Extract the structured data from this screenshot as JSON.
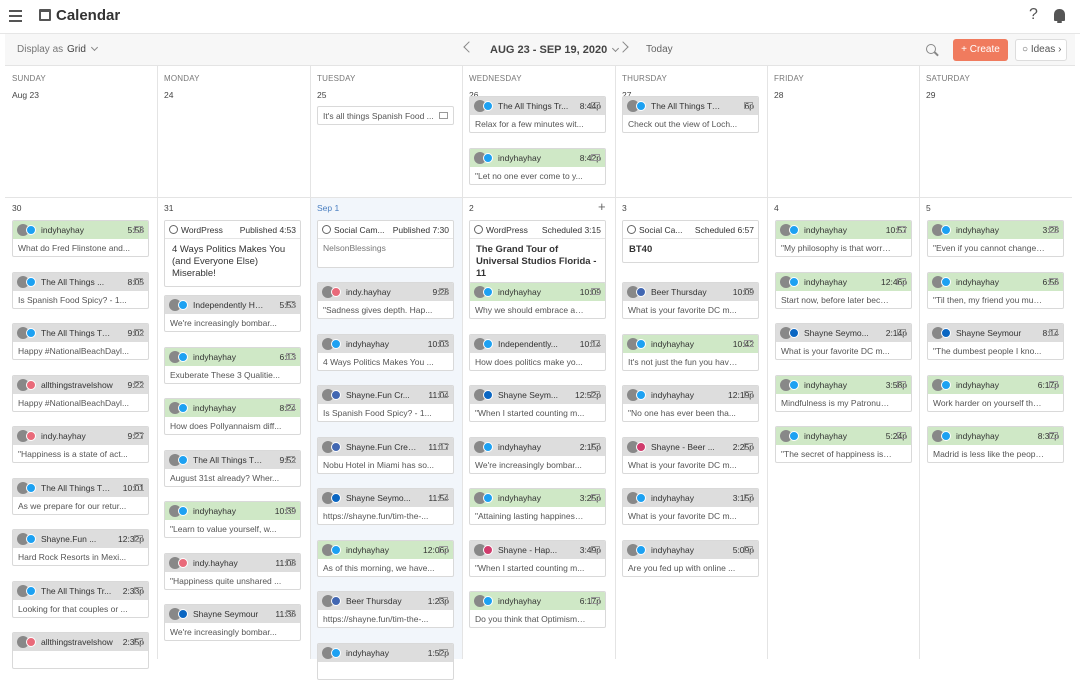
{
  "app": {
    "title": "Calendar"
  },
  "toolbar": {
    "display_as": "Display as",
    "view": "Grid",
    "range": "AUG 23 - SEP 19, 2020",
    "today": "Today",
    "create": "+ Create",
    "ideas": "Ideas"
  },
  "days": [
    "SUNDAY",
    "MONDAY",
    "TUESDAY",
    "WEDNESDAY",
    "THURSDAY",
    "FRIDAY",
    "SATURDAY"
  ],
  "week1_nums": [
    "Aug 23",
    "24",
    "25",
    "26",
    "27",
    "28",
    "29"
  ],
  "week2_nums": [
    "30",
    "31",
    "Sep 1",
    "2",
    "3",
    "4",
    "5"
  ],
  "wk1_tue": {
    "body": "It's all things Spanish Food ..."
  },
  "wk1_wed1": {
    "name": "The All Things Tr...",
    "time": "8:44p",
    "body": "Relax for a few minutes wit..."
  },
  "wk1_wed2": {
    "name": "indyhayhay",
    "time": "8:42p",
    "body": "\"Let no one ever come to y..."
  },
  "wk1_thu": {
    "name": "The All Things Travel...",
    "time": "6p",
    "body": "Check out the view of Loch..."
  },
  "sun": [
    {
      "name": "indyhayhay",
      "time": "5:58",
      "body": "What do Fred Flinstone and..."
    },
    {
      "name": "The All Things ...",
      "time": "8:05",
      "body": "Is Spanish Food Spicy? - 1..."
    },
    {
      "name": "The All Things Trav...",
      "time": "9:02",
      "body": "Happy #NationalBeachDayl..."
    },
    {
      "name": "allthingstravelshow",
      "time": "9:22",
      "body": "Happy #NationalBeachDayl..."
    },
    {
      "name": "indy.hayhay",
      "time": "9:27",
      "body": "\"Happiness is a state of act..."
    },
    {
      "name": "The All Things Tra...",
      "time": "10:01",
      "body": "As we prepare for our retur..."
    },
    {
      "name": "Shayne.Fun ...",
      "time": "12:32p",
      "body": "Hard Rock Resorts in Mexi..."
    },
    {
      "name": "The All Things Tr...",
      "time": "2:33p",
      "body": "Looking for that couples or ..."
    },
    {
      "name": "allthingstravelshow",
      "time": "2:35p",
      "body": ""
    }
  ],
  "mon_wp": {
    "name": "WordPress",
    "time": "Published 4:53",
    "body": "4 Ways Politics Makes You (and Everyone Else) Miserable!"
  },
  "mon": [
    {
      "name": "Independently Hap...",
      "time": "5:53",
      "body": "We're increasingly bombar..."
    },
    {
      "name": "indyhayhay",
      "time": "6:13",
      "body": "Exuberate These 3 Qualitie..."
    },
    {
      "name": "indyhayhay",
      "time": "8:24",
      "body": "How does Pollyannaism diff..."
    },
    {
      "name": "The All Things Trav...",
      "time": "9:52",
      "body": "August 31st already? Wher..."
    },
    {
      "name": "indyhayhay",
      "time": "10:39",
      "body": "\"Learn to value yourself, w..."
    },
    {
      "name": "indy.hayhay",
      "time": "11:08",
      "body": "\"Happiness quite unshared ..."
    },
    {
      "name": "Shayne Seymour",
      "time": "11:36",
      "body": "We're increasingly bombar..."
    }
  ],
  "tue_sc": {
    "name": "Social Cam...",
    "time": "Published 7:30",
    "body": "NelsonBlessings"
  },
  "tue": [
    {
      "name": "indy.hayhay",
      "time": "9:28",
      "body": "\"Sadness gives depth. Hap..."
    },
    {
      "name": "indyhayhay",
      "time": "10:03",
      "body": "4 Ways Politics Makes You ..."
    },
    {
      "name": "Shayne.Fun Cr...",
      "time": "11:04",
      "body": "Is Spanish Food Spicy? - 1..."
    },
    {
      "name": "Shayne.Fun Creati...",
      "time": "11:17",
      "body": "Nobu Hotel in Miami has so..."
    },
    {
      "name": "Shayne Seymo...",
      "time": "11:54",
      "body": "https://shayne.fun/tim-the-..."
    },
    {
      "name": "indyhayhay",
      "time": "12:06p",
      "body": "As of this morning, we have..."
    },
    {
      "name": "Beer Thursday",
      "time": "1:23p",
      "body": "https://shayne.fun/tim-the-..."
    },
    {
      "name": "indyhayhay",
      "time": "1:52p",
      "body": ""
    }
  ],
  "wed_wp": {
    "name": "WordPress",
    "time": "Scheduled 3:15",
    "body": "The Grand Tour of Universal Studios Florida - 11"
  },
  "wed": [
    {
      "name": "indyhayhay",
      "time": "10:09",
      "body": "Why we should embrace and ..."
    },
    {
      "name": "Independently...",
      "time": "10:14",
      "body": "How does politics make yo..."
    },
    {
      "name": "Shayne Seym...",
      "time": "12:52p",
      "body": "\"When I started counting m..."
    },
    {
      "name": "indyhayhay",
      "time": "2:15p",
      "body": "We're increasingly bombar..."
    },
    {
      "name": "indyhayhay",
      "time": "3:25p",
      "body": "\"Attaining lasting happiness re..."
    },
    {
      "name": "Shayne - Hap...",
      "time": "3:49p",
      "body": "\"When I started counting m..."
    },
    {
      "name": "indyhayhay",
      "time": "6:17p",
      "body": "Do you think that Optimism or..."
    }
  ],
  "thu_sc": {
    "name": "Social Ca...",
    "time": "Scheduled 6:57",
    "body": "BT40"
  },
  "thu": [
    {
      "name": "Beer Thursday",
      "time": "10:09",
      "body": "What is your favorite DC m..."
    },
    {
      "name": "indyhayhay",
      "time": "10:42",
      "body": "It's not just the fun you have w..."
    },
    {
      "name": "indyhayhay",
      "time": "12:19p",
      "body": "\"No one has ever been tha..."
    },
    {
      "name": "Shayne - Beer ...",
      "time": "2:25p",
      "body": "What is your favorite DC m..."
    },
    {
      "name": "indyhayhay",
      "time": "3:15p",
      "body": "What is your favorite DC m..."
    },
    {
      "name": "indyhayhay",
      "time": "5:09p",
      "body": "Are you fed up with online ..."
    }
  ],
  "fri": [
    {
      "name": "indyhayhay",
      "time": "10:57",
      "body": "\"My philosophy is that worryin..."
    },
    {
      "name": "indyhayhay",
      "time": "12:46p",
      "body": "Start now, before later becom..."
    },
    {
      "name": "Shayne Seymo...",
      "time": "2:14p",
      "body": "What is your favorite DC m..."
    },
    {
      "name": "indyhayhay",
      "time": "3:58p",
      "body": "Mindfulness is my Patronus fo..."
    },
    {
      "name": "indyhayhay",
      "time": "5:24p",
      "body": "\"The secret of happiness is fre..."
    }
  ],
  "sat": [
    {
      "name": "indyhayhay",
      "time": "3:28",
      "body": "\"Even if you cannot change all..."
    },
    {
      "name": "indyhayhay",
      "time": "6:56",
      "body": "\"Til then, my friend you must c..."
    },
    {
      "name": "Shayne Seymour",
      "time": "8:14",
      "body": "\"The dumbest people I kno..."
    },
    {
      "name": "indyhayhay",
      "time": "6:17p",
      "body": "Work harder on yourself than y..."
    },
    {
      "name": "indyhayhay",
      "time": "8:37p",
      "body": "Madrid is less like the people ..."
    }
  ]
}
